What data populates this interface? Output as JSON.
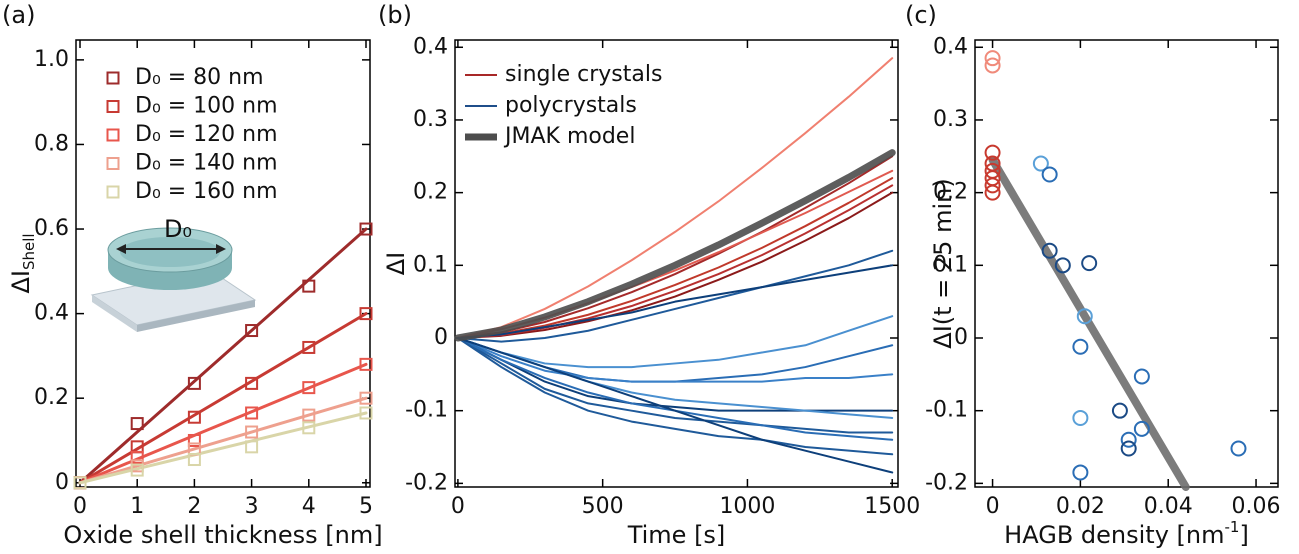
{
  "chart_data": [
    {
      "type": "scatter",
      "panel": "(a)",
      "marker": "square",
      "legend": "upper left",
      "xlabel": "Oxide shell thickness [nm]",
      "ylabel": "ΔI",
      "ylabel_sub": "Shell",
      "inset_label": "D₀",
      "xlim": [
        -0.07,
        5.07
      ],
      "ylim": [
        -0.01,
        1.047
      ],
      "xticks": [
        0,
        1,
        2,
        3,
        4,
        5
      ],
      "yticks": [
        0,
        0.2,
        0.4,
        0.6,
        0.8,
        {
          "value": 1,
          "label": "1.0"
        }
      ],
      "x": [
        0,
        1,
        2,
        3,
        4,
        5
      ],
      "series": [
        {
          "name": "D₀ = 80 nm",
          "color": "#9e2b2b",
          "values": [
            0,
            0.14,
            0.235,
            0.36,
            0.465,
            0.6
          ],
          "fit_values": [
            0,
            0.12,
            0.24,
            0.36,
            0.48,
            0.6
          ]
        },
        {
          "name": "D₀ = 100 nm",
          "color": "#c73a33",
          "values": [
            0,
            0.085,
            0.155,
            0.235,
            0.32,
            0.4
          ],
          "fit_values": [
            0,
            0.08,
            0.16,
            0.24,
            0.32,
            0.4
          ]
        },
        {
          "name": "D₀ = 120 nm",
          "color": "#e8564c",
          "values": [
            0,
            0.06,
            0.1,
            0.165,
            0.225,
            0.28
          ],
          "fit_values": [
            0,
            0.056,
            0.112,
            0.168,
            0.224,
            0.28
          ]
        },
        {
          "name": "D₀ = 140 nm",
          "color": "#eea08e",
          "values": [
            0,
            0.04,
            0.08,
            0.12,
            0.16,
            0.2
          ],
          "fit_values": [
            0,
            0.04,
            0.08,
            0.12,
            0.16,
            0.2
          ]
        },
        {
          "name": "D₀ = 160 nm",
          "color": "#d9d5a8",
          "values": [
            0,
            0.03,
            0.055,
            0.085,
            0.13,
            0.165
          ],
          "fit_values": [
            0,
            0.033,
            0.066,
            0.099,
            0.132,
            0.165
          ]
        }
      ]
    },
    {
      "type": "line",
      "panel": "(b)",
      "legend": "upper left",
      "xlabel": "Time [s]",
      "ylabel": "ΔI",
      "xlim": [
        -10,
        1520
      ],
      "ylim": [
        -0.205,
        0.41
      ],
      "xticks": [
        0,
        500,
        1000,
        1500
      ],
      "yticks": [
        -0.2,
        -0.1,
        0,
        0.1,
        0.2,
        0.3,
        0.4
      ],
      "x": [
        0,
        150,
        300,
        450,
        600,
        750,
        900,
        1050,
        1200,
        1350,
        1500
      ],
      "series": [
        {
          "name": "single crystals",
          "color": "#a82828",
          "width": 2,
          "lines": [
            {
              "color": "#f08070",
              "values": [
                0,
                0.015,
                0.04,
                0.071,
                0.107,
                0.146,
                0.188,
                0.234,
                0.282,
                0.332,
                0.385
              ]
            },
            {
              "color": "#a52a2a",
              "values": [
                0,
                0.008,
                0.022,
                0.041,
                0.063,
                0.088,
                0.116,
                0.146,
                0.179,
                0.213,
                0.25
              ]
            },
            {
              "color": "#c0392b",
              "values": [
                0,
                0.006,
                0.017,
                0.032,
                0.051,
                0.073,
                0.097,
                0.124,
                0.154,
                0.186,
                0.22
              ]
            },
            {
              "color": "#8b1a1a",
              "values": [
                0,
                0.003,
                0.011,
                0.023,
                0.038,
                0.057,
                0.08,
                0.105,
                0.134,
                0.165,
                0.2
              ]
            },
            {
              "color": "#e05a50",
              "values": [
                0,
                0.012,
                0.028,
                0.048,
                0.07,
                0.093,
                0.118,
                0.145,
                0.172,
                0.201,
                0.23
              ]
            },
            {
              "color": "#b83030",
              "values": [
                0,
                0.004,
                0.014,
                0.027,
                0.044,
                0.065,
                0.088,
                0.114,
                0.144,
                0.176,
                0.21
              ]
            }
          ]
        },
        {
          "name": "polycrystals",
          "color": "#1f4e8a",
          "width": 2,
          "lines": [
            {
              "color": "#1f5a9a",
              "values": [
                0,
                -0.005,
                0,
                0.01,
                0.025,
                0.04,
                0.055,
                0.07,
                0.085,
                0.1,
                0.12
              ]
            },
            {
              "color": "#0d3f7a",
              "values": [
                0,
                0.005,
                0.015,
                0.025,
                0.035,
                0.05,
                0.06,
                0.07,
                0.08,
                0.09,
                0.1
              ]
            },
            {
              "color": "#4a90d0",
              "values": [
                0,
                -0.02,
                -0.035,
                -0.04,
                -0.04,
                -0.035,
                -0.03,
                -0.02,
                -0.01,
                0.01,
                0.03
              ]
            },
            {
              "color": "#2a6db5",
              "values": [
                0,
                -0.02,
                -0.04,
                -0.055,
                -0.06,
                -0.06,
                -0.055,
                -0.05,
                -0.04,
                -0.025,
                -0.01
              ]
            },
            {
              "color": "#3a80c8",
              "values": [
                0,
                -0.025,
                -0.045,
                -0.055,
                -0.06,
                -0.06,
                -0.06,
                -0.06,
                -0.055,
                -0.055,
                -0.05
              ]
            },
            {
              "color": "#0d3f7a",
              "values": [
                0,
                -0.03,
                -0.06,
                -0.08,
                -0.09,
                -0.095,
                -0.1,
                -0.1,
                -0.1,
                -0.1,
                -0.1
              ]
            },
            {
              "color": "#4a90d0",
              "values": [
                0,
                -0.02,
                -0.04,
                -0.06,
                -0.075,
                -0.085,
                -0.09,
                -0.095,
                -0.1,
                -0.105,
                -0.11
              ]
            },
            {
              "color": "#1f5a9a",
              "values": [
                0,
                -0.035,
                -0.07,
                -0.09,
                -0.1,
                -0.11,
                -0.115,
                -0.12,
                -0.125,
                -0.13,
                -0.13
              ]
            },
            {
              "color": "#2a6db5",
              "values": [
                0,
                -0.03,
                -0.055,
                -0.075,
                -0.09,
                -0.1,
                -0.11,
                -0.12,
                -0.13,
                -0.135,
                -0.14
              ]
            },
            {
              "color": "#1f5a9a",
              "values": [
                0,
                -0.04,
                -0.075,
                -0.1,
                -0.115,
                -0.125,
                -0.135,
                -0.14,
                -0.15,
                -0.155,
                -0.16
              ]
            },
            {
              "color": "#0d3f7a",
              "values": [
                0,
                -0.02,
                -0.04,
                -0.06,
                -0.08,
                -0.1,
                -0.12,
                -0.14,
                -0.155,
                -0.17,
                -0.185
              ]
            }
          ]
        },
        {
          "name": "JMAK model",
          "color": "#4d4d4d",
          "width": 7,
          "lines": [
            {
              "color": "#4d4d4d",
              "values": [
                0,
                0.011,
                0.029,
                0.05,
                0.074,
                0.1,
                0.128,
                0.158,
                0.189,
                0.221,
                0.255
              ]
            }
          ]
        }
      ]
    },
    {
      "type": "scatter",
      "panel": "(c)",
      "marker": "circle",
      "xlabel": "HAGB density [nm",
      "xlabel_sup": "-1",
      "xlabel_end": "]",
      "ylabel": "ΔI(t = 25 min)",
      "xlim": [
        -0.004,
        0.065
      ],
      "ylim": [
        -0.205,
        0.41
      ],
      "xticks": [
        0,
        0.02,
        0.04,
        0.06
      ],
      "yticks": [
        -0.2,
        -0.1,
        0,
        0.1,
        0.2,
        0.3,
        0.4
      ],
      "fit": {
        "color": "#6e6e6e",
        "x": [
          0,
          0.044
        ],
        "values": [
          0.245,
          -0.205
        ]
      },
      "series": [
        {
          "color": "#f08a7a",
          "x": [
            0,
            0
          ],
          "values": [
            0.385,
            0.375
          ]
        },
        {
          "color": "#c8392e",
          "x": [
            0,
            0,
            0,
            0,
            0,
            0
          ],
          "values": [
            0.255,
            0.24,
            0.23,
            0.22,
            0.21,
            0.2
          ]
        },
        {
          "color": "#5aa0d8",
          "x": [
            0.011,
            0.021,
            0.02
          ],
          "values": [
            0.24,
            0.03,
            -0.11
          ]
        },
        {
          "color": "#2a6db5",
          "x": [
            0.013,
            0.02,
            0.02,
            0.031,
            0.034,
            0.034,
            0.056
          ],
          "values": [
            0.225,
            -0.012,
            -0.185,
            -0.14,
            -0.053,
            -0.125,
            -0.152
          ]
        },
        {
          "color": "#1b4a85",
          "x": [
            0.013,
            0.016,
            0.022,
            0.029,
            0.031
          ],
          "values": [
            0.12,
            0.1,
            0.103,
            -0.1,
            -0.152
          ]
        }
      ]
    }
  ]
}
